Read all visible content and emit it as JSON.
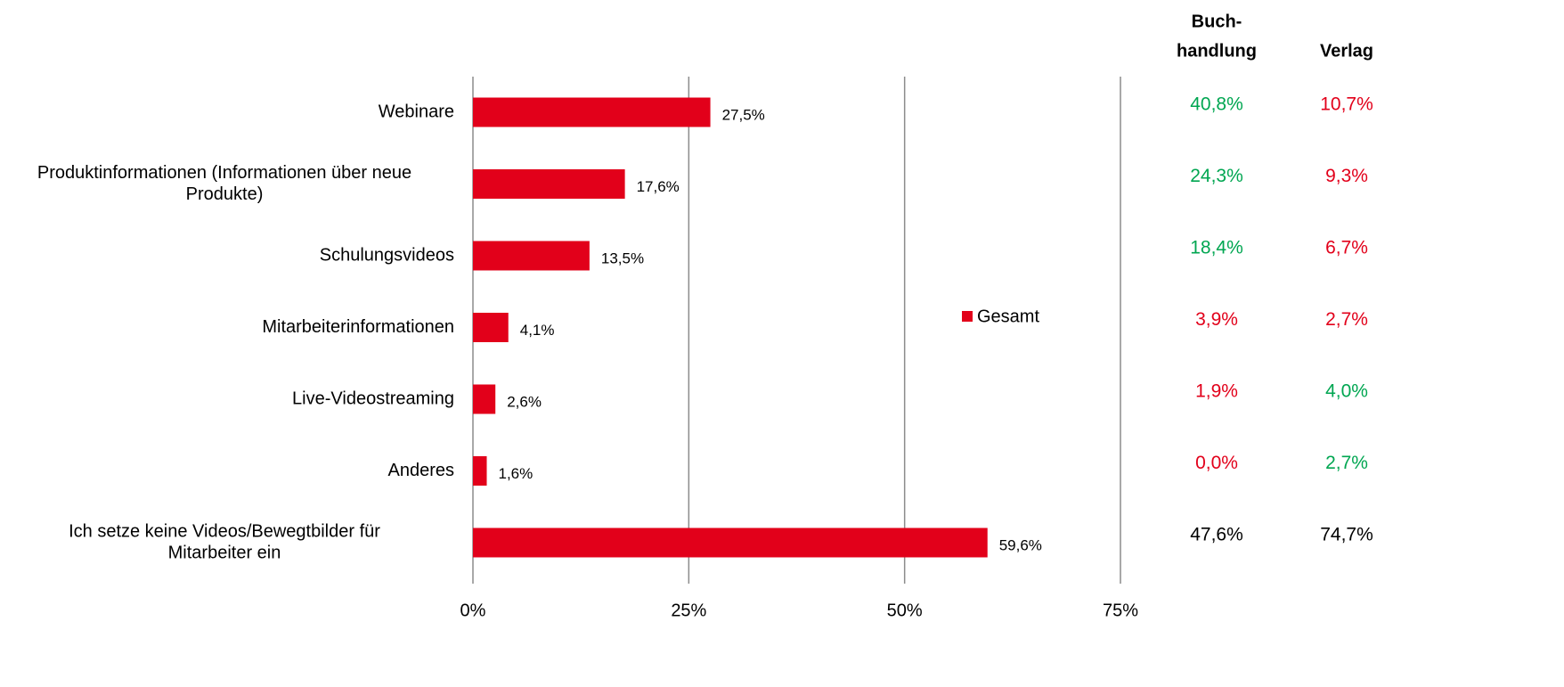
{
  "chart_data": {
    "type": "bar",
    "orientation": "horizontal",
    "categories": [
      "Webinare",
      "Produktinformationen (Informationen über neue Produkte)",
      "Schulungsvideos",
      "Mitarbeiterinformationen",
      "Live-Videostreaming",
      "Anderes",
      "Ich setze keine Videos/Bewegtbilder für Mitarbeiter ein"
    ],
    "category_lines": [
      [
        "Webinare"
      ],
      [
        "Produktinformationen (Informationen über neue",
        "Produkte)"
      ],
      [
        "Schulungsvideos"
      ],
      [
        "Mitarbeiterinformationen"
      ],
      [
        "Live-Videostreaming"
      ],
      [
        "Anderes"
      ],
      [
        "Ich setze keine Videos/Bewegtbilder für",
        "Mitarbeiter ein"
      ]
    ],
    "series": [
      {
        "name": "Gesamt",
        "color": "#e2001a",
        "values": [
          27.5,
          17.6,
          13.5,
          4.1,
          2.6,
          1.6,
          59.6
        ],
        "labels": [
          "27,5%",
          "17,6%",
          "13,5%",
          "4,1%",
          "2,6%",
          "1,6%",
          "59,6%"
        ]
      }
    ],
    "xlim": [
      0,
      75
    ],
    "ticks": [
      0,
      25,
      50,
      75
    ],
    "tick_labels": [
      "0%",
      "25%",
      "50%",
      "75%"
    ],
    "grid": true,
    "legend": {
      "position": "right",
      "label": "Gesamt"
    },
    "side_table": {
      "headers": [
        [
          "Buch-",
          "handlung"
        ],
        [
          "Verlag"
        ]
      ],
      "columns": [
        {
          "values": [
            "40,8%",
            "24,3%",
            "18,4%",
            "3,9%",
            "1,9%",
            "0,0%",
            "47,6%"
          ],
          "colors": [
            "#00a651",
            "#00a651",
            "#00a651",
            "#e2001a",
            "#e2001a",
            "#e2001a",
            "#000000"
          ]
        },
        {
          "values": [
            "10,7%",
            "9,3%",
            "6,7%",
            "2,7%",
            "4,0%",
            "2,7%",
            "74,7%"
          ],
          "colors": [
            "#e2001a",
            "#e2001a",
            "#e2001a",
            "#e2001a",
            "#00a651",
            "#00a651",
            "#000000"
          ]
        }
      ]
    }
  }
}
